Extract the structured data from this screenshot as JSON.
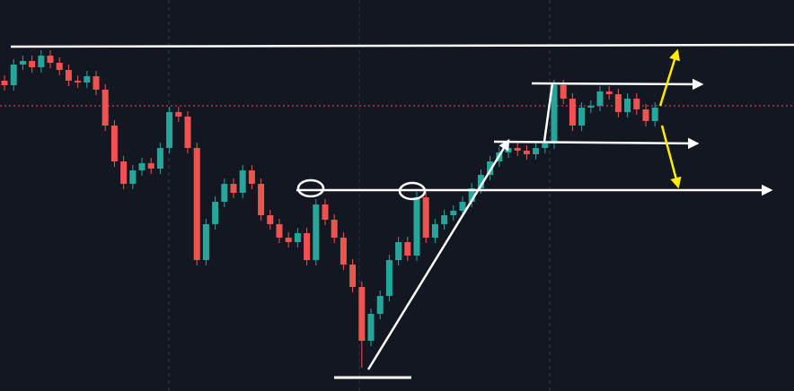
{
  "chart_data": {
    "type": "candlestick",
    "open": [
      346,
      341,
      364,
      368,
      361,
      374,
      366,
      358,
      346,
      344,
      351,
      336,
      296,
      256,
      231,
      246,
      254,
      248,
      271,
      311,
      306,
      271,
      146,
      186,
      211,
      231,
      221,
      246,
      231,
      196,
      186,
      171,
      166,
      176,
      146,
      208,
      191,
      171,
      141,
      116,
      56,
      86,
      106,
      146,
      166,
      151,
      216,
      171,
      186,
      196,
      201,
      211,
      226,
      241,
      256,
      266,
      271,
      268,
      264,
      271,
      276,
      341,
      326,
      296,
      316,
      318,
      334,
      331,
      311,
      326,
      314,
      301
    ],
    "high": [
      352,
      370,
      374,
      374,
      380,
      380,
      372,
      364,
      352,
      357,
      357,
      342,
      302,
      262,
      252,
      260,
      260,
      277,
      317,
      317,
      312,
      277,
      192,
      217,
      237,
      237,
      252,
      252,
      237,
      202,
      192,
      177,
      182,
      182,
      214,
      214,
      197,
      177,
      147,
      122,
      92,
      112,
      152,
      172,
      172,
      222,
      222,
      192,
      202,
      207,
      217,
      232,
      247,
      262,
      272,
      277,
      277,
      274,
      277,
      282,
      347,
      347,
      332,
      322,
      324,
      340,
      340,
      337,
      332,
      332,
      320,
      322
    ],
    "low": [
      335,
      335,
      358,
      355,
      355,
      360,
      352,
      340,
      338,
      338,
      330,
      290,
      250,
      225,
      225,
      240,
      242,
      242,
      265,
      300,
      265,
      140,
      140,
      180,
      205,
      215,
      215,
      225,
      190,
      180,
      165,
      160,
      160,
      140,
      140,
      185,
      165,
      135,
      110,
      26,
      50,
      80,
      100,
      140,
      145,
      145,
      165,
      165,
      180,
      190,
      195,
      205,
      220,
      235,
      250,
      260,
      262,
      258,
      258,
      265,
      270,
      320,
      290,
      290,
      310,
      312,
      325,
      305,
      305,
      308,
      295,
      295
    ],
    "close": [
      341,
      364,
      368,
      361,
      374,
      366,
      358,
      346,
      344,
      351,
      336,
      296,
      256,
      231,
      246,
      254,
      248,
      271,
      311,
      306,
      271,
      146,
      186,
      211,
      231,
      221,
      246,
      231,
      196,
      186,
      171,
      166,
      176,
      146,
      208,
      191,
      171,
      141,
      116,
      56,
      86,
      106,
      146,
      166,
      151,
      216,
      171,
      186,
      196,
      201,
      211,
      226,
      241,
      256,
      266,
      271,
      268,
      264,
      271,
      276,
      341,
      326,
      296,
      316,
      318,
      334,
      331,
      311,
      326,
      314,
      301,
      316
    ],
    "up_color": "#26a69a",
    "down_color": "#ef5350",
    "ylim": [
      0,
      436
    ]
  }
}
